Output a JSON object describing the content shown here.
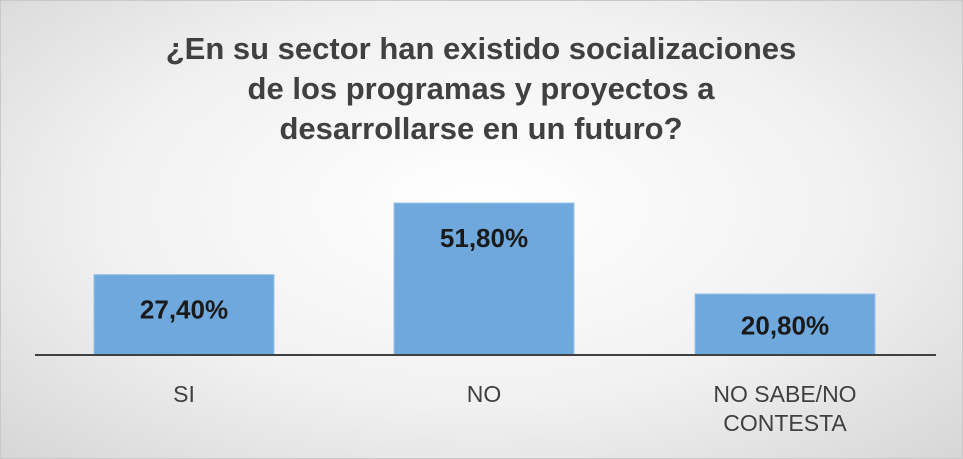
{
  "chart_data": {
    "type": "bar",
    "title_lines": [
      "¿En su sector han existido socializaciones",
      "de los programas y proyectos a",
      "desarrollarse en un futuro?"
    ],
    "categories": [
      [
        "SI"
      ],
      [
        "NO"
      ],
      [
        "NO SABE/NO",
        "CONTESTA"
      ]
    ],
    "values": [
      27.4,
      51.8,
      20.8
    ],
    "data_labels": [
      "27,40%",
      "51,80%",
      "20,80%"
    ],
    "bar_color": "#6fa8dc",
    "grid": false,
    "legend": "none"
  }
}
